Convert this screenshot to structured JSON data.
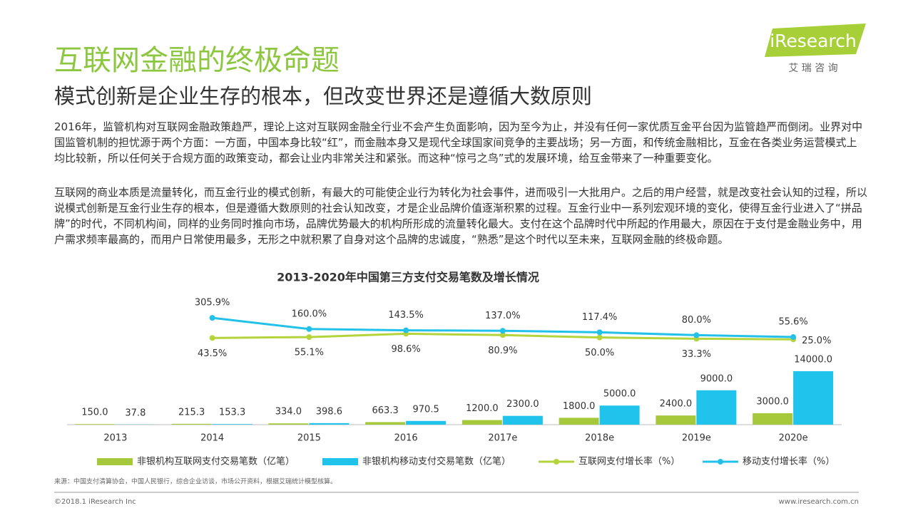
{
  "header": {
    "title": "互联网金融的终极命题",
    "subtitle": "模式创新是企业生存的根本，但改变世界还是遵循大数原则",
    "logo": "iResearch",
    "logo_sub": "艾 瑞 咨 询"
  },
  "paragraphs": [
    "2016年，监管机构对互联网金融政策趋严，理论上这对互联网金融全行业不会产生负面影响，因为至今为止，并没有任何一家优质互金平台因为监管趋严而倒闭。业界对中国监管机制的担忧源于两个方面：一方面，中国本身比较“红”，而金融本身又是现代全球国家间竞争的主要战场；另一方面，和传统金融相比，互金在各类业务运营模式上均比较新，所以任何关于合规方面的政策变动，都会让业内非常关注和紧张。而这种“惊弓之鸟”式的发展环境，给互金带来了一种重要变化。",
    "互联网的商业本质是流量转化，而互金行业的模式创新，有最大的可能使企业行为转化为社会事件，进而吸引一大批用户。之后的用户经营，就是改变社会认知的过程，所以说模式创新是互金行业生存的根本，但是遵循大数原则的社会认知改变，才是企业品牌价值逐渐积累的过程。互金行业中一系列宏观环境的变化，使得互金行业进入了“拼品牌”的时代，不同机构间，同样的业务同时推向市场，品牌优势最大的机构所形成的流量转化最大。支付在这个品牌时代中所起的作用最大，原因在于支付是金融业务中，用户需求频率最高的，而用户日常使用最多，无形之中就积累了自身对这个品牌的忠诚度，“熟悉”是这个时代以至未来，互联网金融的终极命题。"
  ],
  "chart_data": {
    "type": "bar",
    "title": "2013-2020年中国第三方支付交易笔数及增长情况",
    "categories": [
      "2013",
      "2014",
      "2015",
      "2016",
      "2017e",
      "2018e",
      "2019e",
      "2020e"
    ],
    "ylim": [
      0,
      14000
    ],
    "y2lim": [
      0,
      400
    ],
    "series": [
      {
        "name": "非银机构互联网支付交易笔数（亿笔）",
        "type": "bar",
        "color": "#a6c93c",
        "values": [
          150,
          215.3,
          334,
          663.3,
          1200,
          1800,
          2400,
          3000
        ],
        "value_labels": [
          "150.0",
          "215.3",
          "334.0",
          "663.3",
          "1200.0",
          "1800.0",
          "2400.0",
          "3000.0"
        ]
      },
      {
        "name": "非银机构移动支付交易笔数（亿笔）",
        "type": "bar",
        "color": "#1fc3ec",
        "values": [
          37.8,
          153.3,
          398.6,
          970.5,
          2300,
          5000,
          9000,
          14000
        ],
        "value_labels": [
          "37.8",
          "153.3",
          "398.6",
          "970.5",
          "2300.0",
          "5000.0",
          "9000.0",
          "14000.0"
        ]
      },
      {
        "name": "互联网支付增长率（%）",
        "type": "line",
        "axis": "y2",
        "color": "#b5d43b",
        "values": [
          null,
          43.5,
          55.1,
          98.6,
          80.9,
          50.0,
          33.3,
          25.0
        ],
        "value_labels": [
          null,
          "43.5%",
          "55.1%",
          "98.6%",
          "80.9%",
          "50.0%",
          "33.3%",
          "25.0%"
        ]
      },
      {
        "name": "移动支付增长率（%）",
        "type": "line",
        "axis": "y2",
        "color": "#23c1ea",
        "values": [
          null,
          305.9,
          160.0,
          143.5,
          137.0,
          117.4,
          80.0,
          55.6
        ],
        "value_labels": [
          null,
          "305.9%",
          "160.0%",
          "143.5%",
          "137.0%",
          "117.4%",
          "80.0%",
          "55.6%"
        ]
      }
    ]
  },
  "footer": {
    "source": "来源：中国支付清算协会，中国人民银行，综合企业访谈，市场公开资料，根据艾瑞统计模型核算。",
    "copyright": "©2018.1 iResearch Inc",
    "url": "www.iresearch.com.cn"
  }
}
